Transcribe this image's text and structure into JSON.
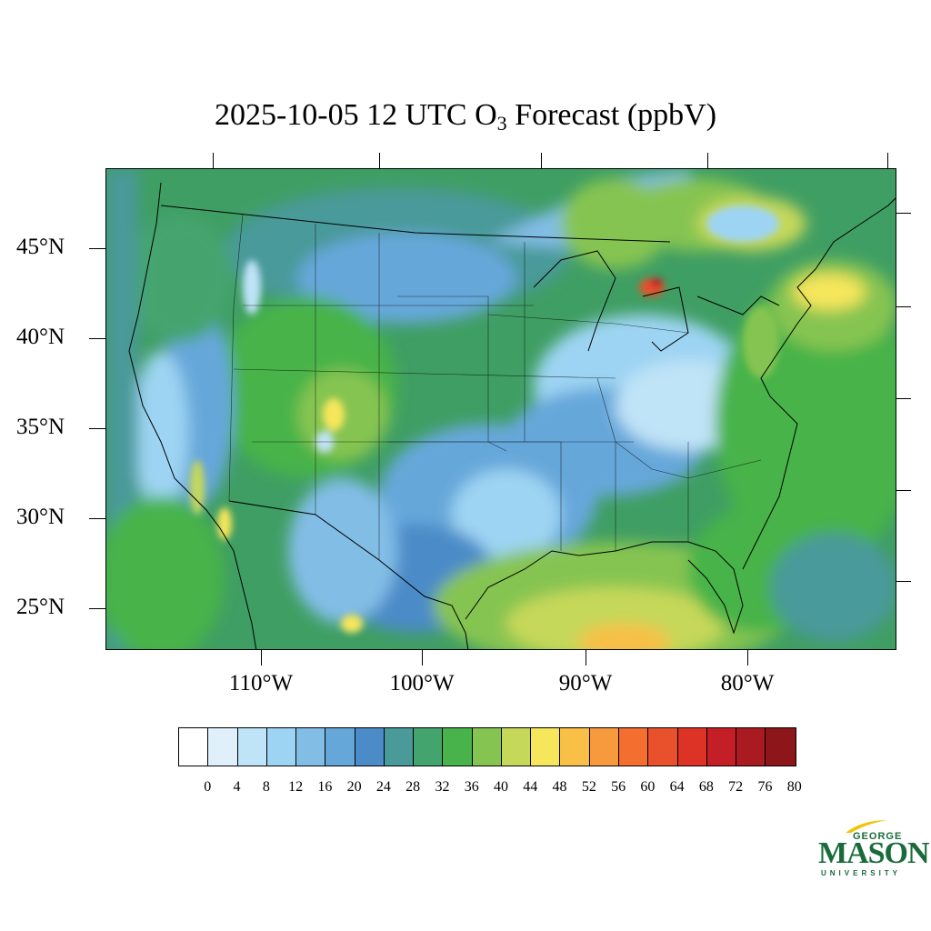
{
  "title": {
    "prefix": "2025-10-05 12 UTC O",
    "subscript": "3",
    "suffix": " Forecast (ppbV)"
  },
  "map": {
    "lat_labels": [
      "45°N",
      "40°N",
      "35°N",
      "30°N",
      "25°N"
    ],
    "lon_labels": [
      "110°W",
      "100°W",
      "90°W",
      "80°W"
    ],
    "background_color": "#3f9e63"
  },
  "colorbar": {
    "colors": [
      "#ffffff",
      "#dff0fb",
      "#bfe3f7",
      "#9dd4f3",
      "#82bde6",
      "#66a7da",
      "#4b8bc8",
      "#4a9a9a",
      "#44a46e",
      "#47b34a",
      "#86c451",
      "#c6d85a",
      "#f6e65c",
      "#f8c047",
      "#f79a3d",
      "#f46e2f",
      "#e9512c",
      "#dd3327",
      "#c41f26",
      "#aa1a21",
      "#8c1619"
    ],
    "labels": [
      "0",
      "4",
      "8",
      "12",
      "16",
      "20",
      "24",
      "28",
      "32",
      "36",
      "40",
      "44",
      "48",
      "52",
      "56",
      "60",
      "64",
      "68",
      "72",
      "76",
      "80"
    ]
  },
  "logo": {
    "line1": "GEORGE",
    "line2": "MASON",
    "line3": "UNIVERSITY",
    "color": "#1a6b3a",
    "accent": "#f2c500"
  }
}
